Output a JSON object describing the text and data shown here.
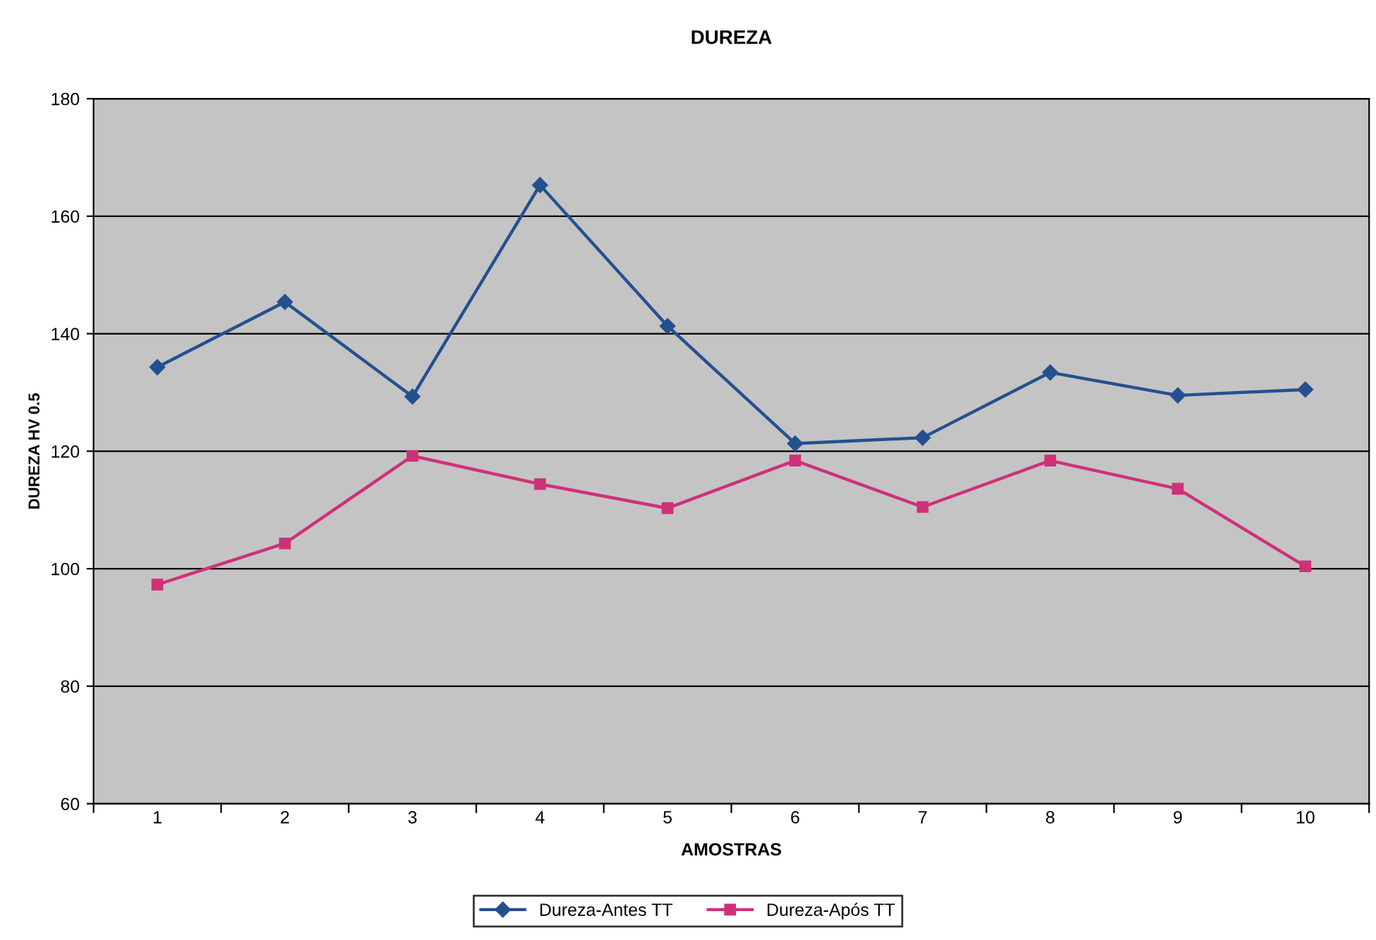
{
  "chart_data": {
    "type": "line",
    "title": "DUREZA",
    "xlabel": "AMOSTRAS",
    "ylabel": "DUREZA HV 0.5",
    "categories": [
      "1",
      "2",
      "3",
      "4",
      "5",
      "6",
      "7",
      "8",
      "9",
      "10"
    ],
    "series": [
      {
        "name": "Dureza-Antes TT",
        "color": "#24508f",
        "marker": "diamond",
        "values": [
          134.3,
          145.4,
          129.3,
          165.3,
          141.3,
          121.3,
          122.3,
          133.4,
          129.5,
          130.5
        ]
      },
      {
        "name": "Dureza-Após TT",
        "color": "#d0307a",
        "marker": "square",
        "values": [
          97.3,
          104.3,
          119.2,
          114.4,
          110.3,
          118.4,
          110.5,
          118.4,
          113.6,
          100.4
        ]
      }
    ],
    "ylim": [
      60,
      180
    ],
    "yticks": [
      60,
      80,
      100,
      120,
      140,
      160,
      180
    ],
    "grid": "y",
    "legend": "bottom",
    "line_style": "solid"
  }
}
